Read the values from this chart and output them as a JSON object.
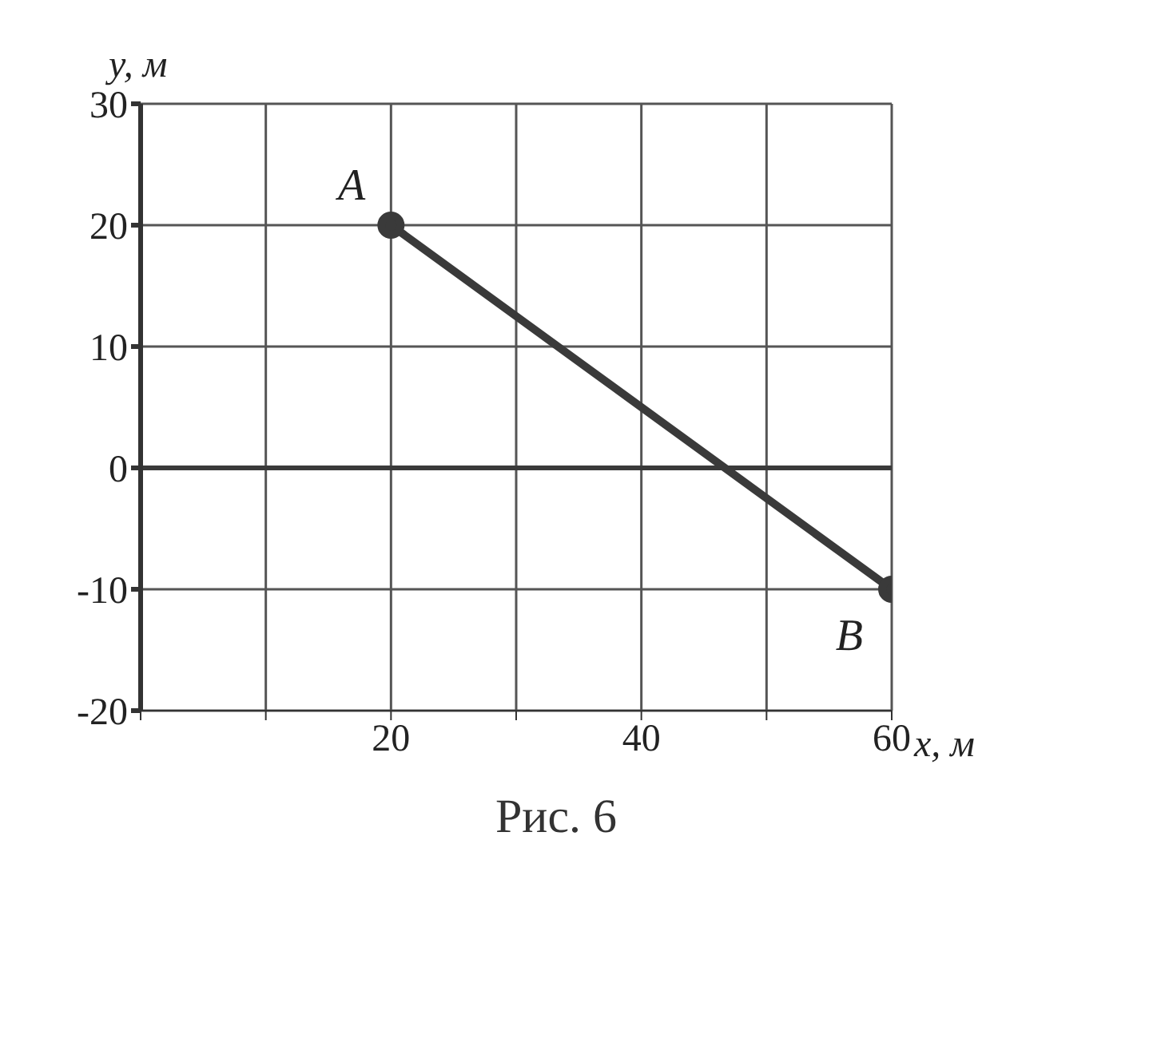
{
  "chart_data": {
    "type": "line",
    "xlabel": "x, м",
    "ylabel": "y, м",
    "series": [
      {
        "x": [
          20,
          60
        ],
        "values": [
          20,
          -10
        ],
        "color": "#3a3a3a"
      }
    ],
    "xlim": [
      0,
      60
    ],
    "ylim": [
      -20,
      30
    ],
    "xticks": [
      {
        "value": 0,
        "label": null
      },
      {
        "value": 10,
        "label": null
      },
      20,
      {
        "value": 30,
        "label": null
      },
      40,
      {
        "value": 50,
        "label": null
      },
      60
    ],
    "yticks": [
      -20,
      -10,
      0,
      10,
      20,
      30
    ],
    "grid": true,
    "marker": "circle",
    "ref_lines": [
      {
        "axis": "y",
        "value": 0,
        "color": "#3a3a3a"
      }
    ],
    "annotations": [
      {
        "text": "A",
        "x": 20,
        "y": 20
      },
      {
        "text": "B",
        "x": 60,
        "y": -10
      },
      "Рис. 6"
    ]
  }
}
